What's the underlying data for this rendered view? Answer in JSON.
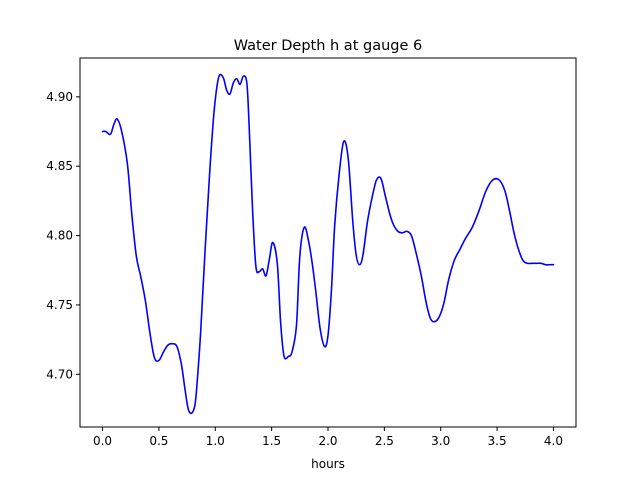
{
  "chart_data": {
    "type": "line",
    "title": "Water Depth h at gauge 6",
    "xlabel": "hours",
    "ylabel": "",
    "xlim": [
      -0.2,
      4.2
    ],
    "ylim": [
      4.662,
      4.928
    ],
    "xticks": [
      0.0,
      0.5,
      1.0,
      1.5,
      2.0,
      2.5,
      3.0,
      3.5,
      4.0
    ],
    "xtick_labels": [
      "0.0",
      "0.5",
      "1.0",
      "1.5",
      "2.0",
      "2.5",
      "3.0",
      "3.5",
      "4.0"
    ],
    "yticks": [
      4.7,
      4.75,
      4.8,
      4.85,
      4.9
    ],
    "ytick_labels": [
      "4.70",
      "4.75",
      "4.80",
      "4.85",
      "4.90"
    ],
    "grid": false,
    "legend": "none",
    "series": [
      {
        "color": "#0000ff",
        "x": [
          0.0,
          0.03,
          0.07,
          0.1,
          0.13,
          0.17,
          0.22,
          0.26,
          0.3,
          0.34,
          0.38,
          0.42,
          0.46,
          0.5,
          0.54,
          0.58,
          0.62,
          0.66,
          0.7,
          0.73,
          0.76,
          0.79,
          0.82,
          0.84,
          0.87,
          0.91,
          0.95,
          0.99,
          1.03,
          1.07,
          1.1,
          1.13,
          1.16,
          1.19,
          1.22,
          1.25,
          1.28,
          1.3,
          1.33,
          1.36,
          1.39,
          1.42,
          1.45,
          1.48,
          1.51,
          1.55,
          1.58,
          1.61,
          1.65,
          1.68,
          1.72,
          1.75,
          1.79,
          1.83,
          1.86,
          1.89,
          1.93,
          1.97,
          2.0,
          2.03,
          2.06,
          2.1,
          2.14,
          2.18,
          2.22,
          2.25,
          2.28,
          2.31,
          2.35,
          2.39,
          2.43,
          2.47,
          2.51,
          2.55,
          2.58,
          2.62,
          2.66,
          2.7,
          2.74,
          2.78,
          2.83,
          2.87,
          2.91,
          2.95,
          2.99,
          3.03,
          3.07,
          3.12,
          3.17,
          3.22,
          3.28,
          3.34,
          3.4,
          3.46,
          3.52,
          3.57,
          3.61,
          3.65,
          3.69,
          3.73,
          3.77,
          3.81,
          3.85,
          3.89,
          3.93,
          3.97,
          4.0
        ],
        "y": [
          4.875,
          4.875,
          4.873,
          4.88,
          4.884,
          4.875,
          4.852,
          4.815,
          4.785,
          4.77,
          4.753,
          4.73,
          4.712,
          4.71,
          4.716,
          4.721,
          4.722,
          4.72,
          4.707,
          4.69,
          4.675,
          4.672,
          4.678,
          4.695,
          4.73,
          4.79,
          4.845,
          4.89,
          4.914,
          4.914,
          4.905,
          4.902,
          4.91,
          4.913,
          4.909,
          4.915,
          4.91,
          4.88,
          4.82,
          4.778,
          4.774,
          4.776,
          4.771,
          4.783,
          4.795,
          4.78,
          4.737,
          4.713,
          4.713,
          4.716,
          4.735,
          4.785,
          4.806,
          4.795,
          4.78,
          4.761,
          4.733,
          4.72,
          4.728,
          4.76,
          4.808,
          4.845,
          4.868,
          4.855,
          4.81,
          4.786,
          4.779,
          4.786,
          4.81,
          4.827,
          4.84,
          4.841,
          4.828,
          4.815,
          4.808,
          4.803,
          4.802,
          4.803,
          4.8,
          4.788,
          4.77,
          4.752,
          4.74,
          4.738,
          4.742,
          4.752,
          4.768,
          4.782,
          4.79,
          4.798,
          4.806,
          4.818,
          4.832,
          4.84,
          4.84,
          4.832,
          4.818,
          4.802,
          4.79,
          4.782,
          4.78,
          4.78,
          4.78,
          4.78,
          4.779,
          4.779,
          4.779
        ]
      }
    ]
  }
}
